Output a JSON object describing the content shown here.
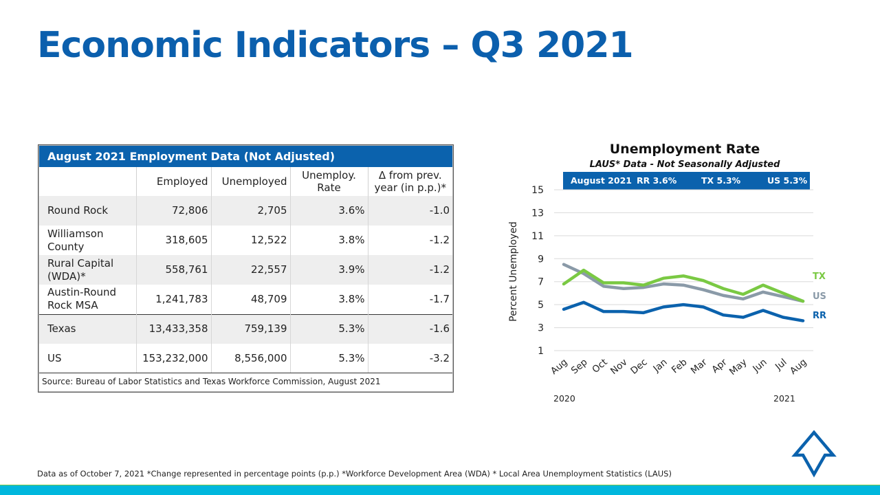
{
  "slide": {
    "title": "Economic Indicators – Q3 2021",
    "footnote": "Data as of October 7, 2021 *Change represented in percentage points (p.p.) *Workforce Development Area (WDA) * Local Area Unemployment Statistics (LAUS)",
    "logo_icon": "arrow-shield-logo-icon"
  },
  "table": {
    "title": "August 2021 Employment Data (Not Adjusted)",
    "headers": [
      "",
      "Employed",
      "Unemployed",
      "Unemploy. Rate",
      "Δ from prev. year (in p.p.)*"
    ],
    "rows": [
      {
        "area": "Round Rock",
        "employed": "72,806",
        "unemployed": "2,705",
        "rate": "3.6%",
        "delta": "-1.0"
      },
      {
        "area": "Williamson County",
        "employed": "318,605",
        "unemployed": "12,522",
        "rate": "3.8%",
        "delta": "-1.2"
      },
      {
        "area": "Rural Capital (WDA)*",
        "employed": "558,761",
        "unemployed": "22,557",
        "rate": "3.9%",
        "delta": "-1.2"
      },
      {
        "area": "Austin-Round Rock MSA",
        "employed": "1,241,783",
        "unemployed": "48,709",
        "rate": "3.8%",
        "delta": "-1.7"
      },
      {
        "area": "Texas",
        "employed": "13,433,358",
        "unemployed": "759,139",
        "rate": "5.3%",
        "delta": "-1.6"
      },
      {
        "area": "US",
        "employed": "153,232,000",
        "unemployed": "8,556,000",
        "rate": "5.3%",
        "delta": "-3.2"
      }
    ],
    "source": "Source: Bureau of Labor Statistics and Texas Workforce Commission, August 2021"
  },
  "chart_data": {
    "type": "line",
    "title": "Unemployment Rate",
    "subtitle": "LAUS* Data - Not Seasonally Adjusted",
    "banner": {
      "label": "August 2021",
      "rr": "RR 3.6%",
      "tx": "TX 5.3%",
      "us": "US 5.3%"
    },
    "ylabel": "Percent Unemployed",
    "xlabel": "",
    "ylim": [
      1,
      15
    ],
    "yticks": [
      1,
      3,
      5,
      7,
      9,
      11,
      13,
      15
    ],
    "grid": true,
    "categories": [
      "Aug",
      "Sep",
      "Oct",
      "Nov",
      "Dec",
      "Jan",
      "Feb",
      "Mar",
      "Apr",
      "May",
      "Jun",
      "Jul",
      "Aug"
    ],
    "year_labels": [
      {
        "label": "2020",
        "at": "Aug"
      },
      {
        "label": "2021",
        "at": "Aug"
      }
    ],
    "series": [
      {
        "name": "TX",
        "color": "#7ac943",
        "values": [
          6.8,
          8.0,
          6.9,
          6.9,
          6.7,
          7.3,
          7.5,
          7.1,
          6.4,
          5.9,
          6.7,
          6.0,
          5.3
        ]
      },
      {
        "name": "US",
        "color": "#8a9aa8",
        "values": [
          8.5,
          7.7,
          6.6,
          6.4,
          6.5,
          6.8,
          6.7,
          6.3,
          5.8,
          5.5,
          6.1,
          5.7,
          5.3
        ]
      },
      {
        "name": "RR",
        "color": "#0b62ad",
        "values": [
          4.6,
          5.2,
          4.4,
          4.4,
          4.3,
          4.8,
          5.0,
          4.8,
          4.1,
          3.9,
          4.5,
          3.9,
          3.6
        ]
      }
    ],
    "legend": "inline-right"
  }
}
